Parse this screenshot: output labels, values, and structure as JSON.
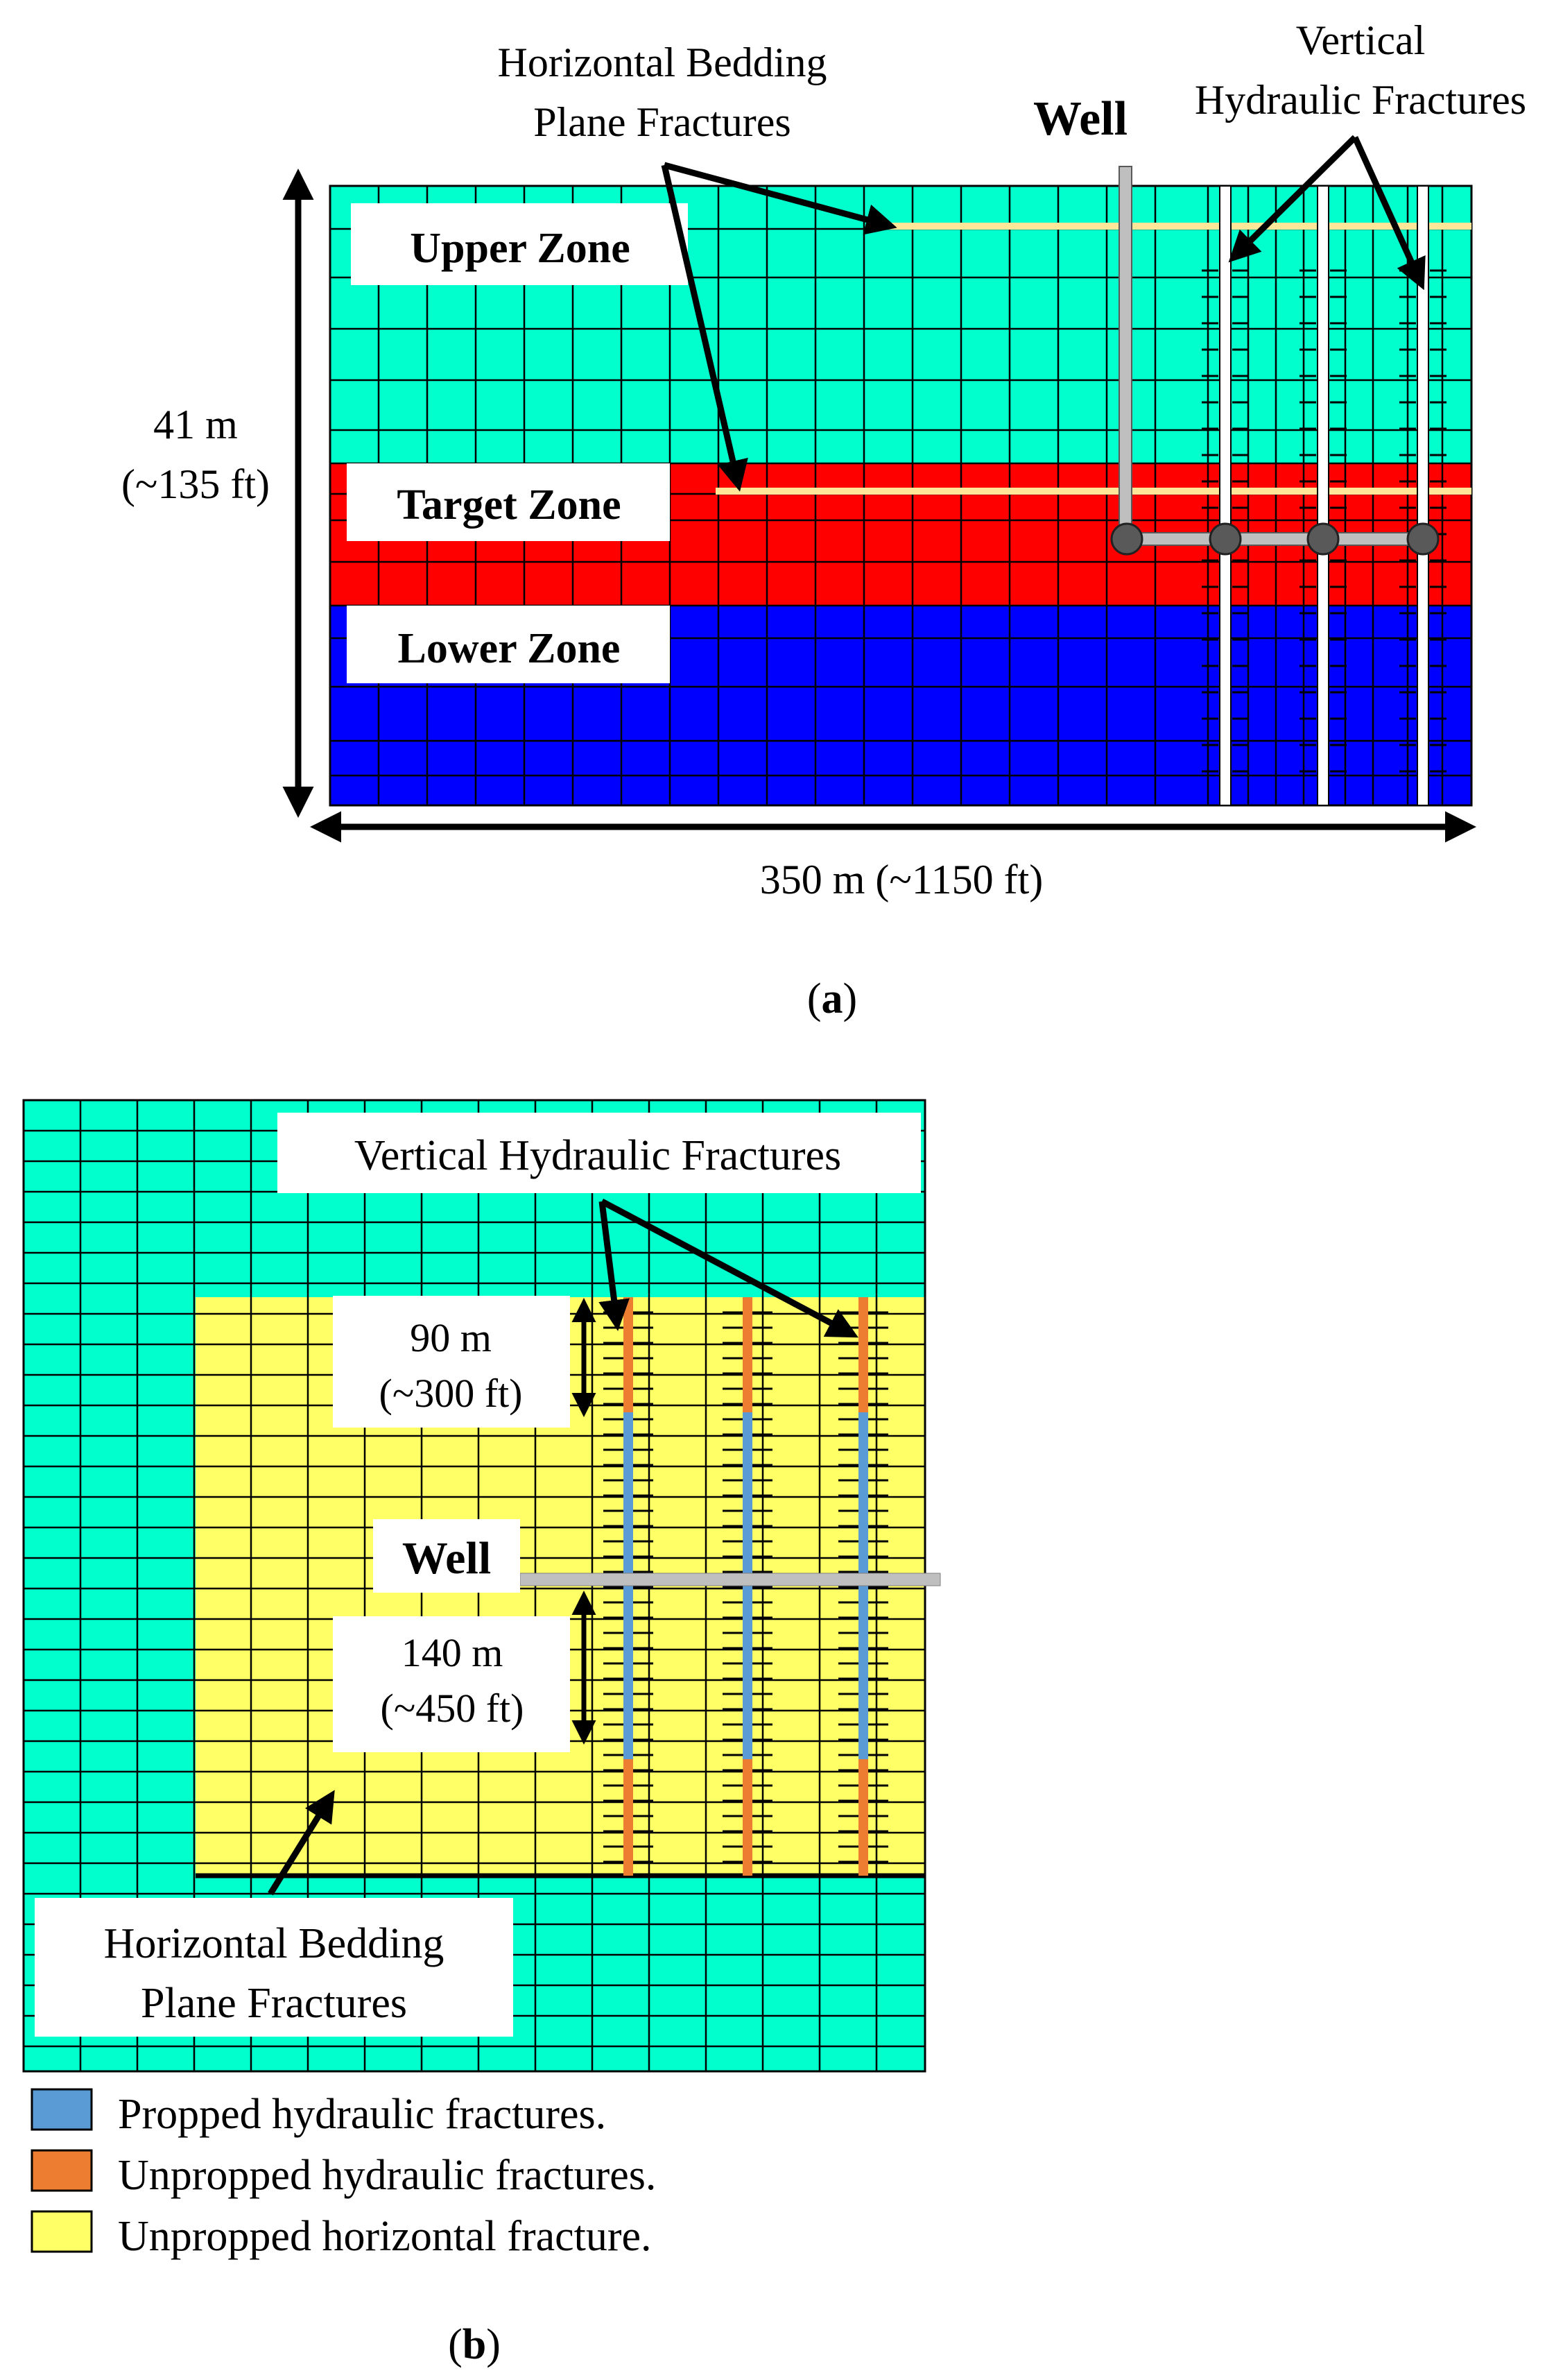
{
  "panel_a": {
    "caption_letter": "a",
    "label_horizontal_line1": "Horizontal Bedding",
    "label_horizontal_line2": "Plane Fractures",
    "label_vertical_line1": "Vertical",
    "label_vertical_line2": "Hydraulic Fractures",
    "label_well": "Well",
    "zone_upper": "Upper Zone",
    "zone_target": "Target Zone",
    "zone_lower": "Lower Zone",
    "height_m": "41 m",
    "height_ft": "(~135 ft)",
    "width": "350 m (~1150 ft)"
  },
  "panel_b": {
    "caption_letter": "b",
    "label_vertical": "Vertical Hydraulic Fractures",
    "label_well": "Well",
    "dim_upper_m": "90 m",
    "dim_upper_ft": "(~300 ft)",
    "dim_lower_m": "140 m",
    "dim_lower_ft": "(~450 ft)",
    "label_horizontal_line1": "Horizontal Bedding",
    "label_horizontal_line2": "Plane Fractures"
  },
  "legend": [
    {
      "label": "Propped hydraulic fractures.",
      "color": "#5b9bd5"
    },
    {
      "label": "Unpropped hydraulic fractures.",
      "color": "#ed7d31"
    },
    {
      "label": "Unpropped horizontal fracture.",
      "color": "#ffff66"
    }
  ],
  "colors": {
    "teal": "#00ffcc",
    "red": "#ff0000",
    "blue": "#0000ff",
    "yellow": "#ffff66",
    "bedding_line": "#ffe699",
    "well": "#bfbfbf"
  }
}
